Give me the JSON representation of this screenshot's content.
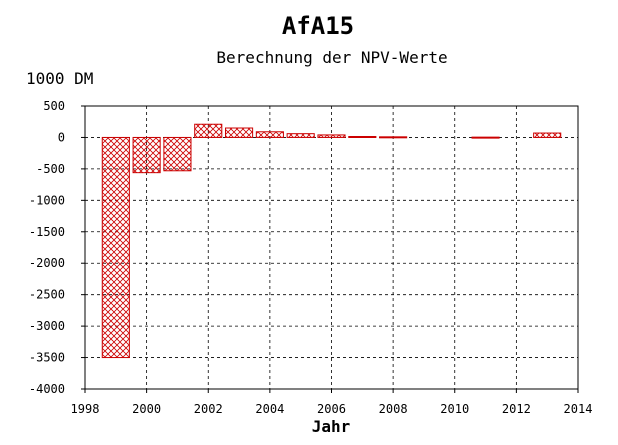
{
  "chart_data": {
    "type": "bar",
    "title": "AfA15",
    "subtitle": "Berechnung der NPV-Werte",
    "ylabel": "1000 DM",
    "xlabel": "Jahr",
    "xlim": [
      1998,
      2014
    ],
    "ylim": [
      -4000,
      500
    ],
    "xticks": [
      1998,
      2000,
      2002,
      2004,
      2006,
      2008,
      2010,
      2012,
      2014
    ],
    "yticks": [
      500,
      0,
      -500,
      -1000,
      -1500,
      -2000,
      -2500,
      -3000,
      -3500,
      -4000
    ],
    "grid": true,
    "bar_color": "#cc0000",
    "bar_pattern": "crosshatch",
    "x": [
      1999,
      2000,
      2001,
      2002,
      2003,
      2004,
      2005,
      2006,
      2007,
      2008,
      2011,
      2013
    ],
    "values": [
      -3500,
      -560,
      -530,
      210,
      150,
      90,
      60,
      40,
      15,
      10,
      5,
      70
    ]
  }
}
